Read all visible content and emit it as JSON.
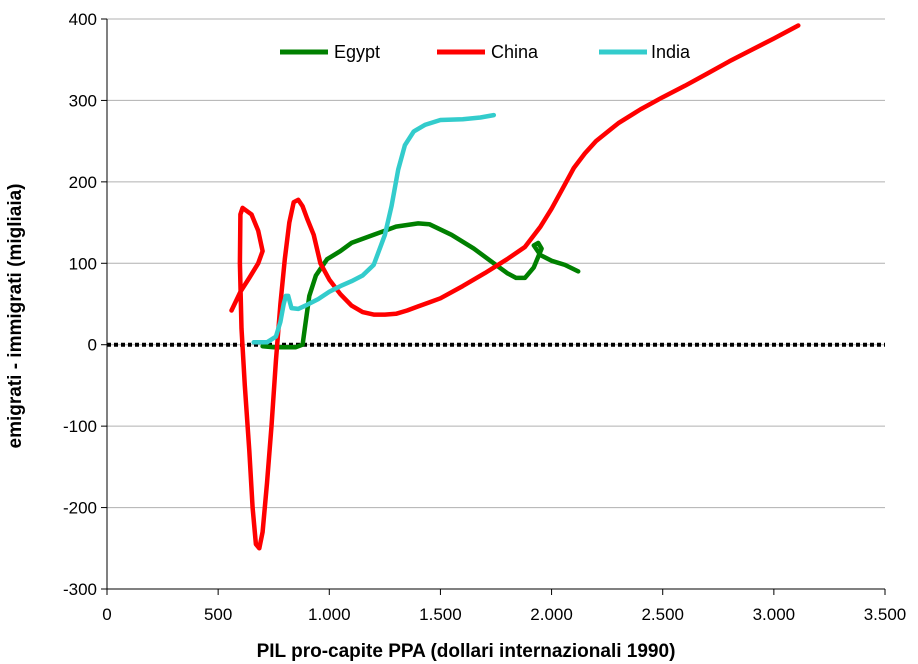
{
  "chart_data": {
    "type": "line",
    "title": "",
    "xlabel": "PIL pro-capite PPA (dollari internazionali 1990)",
    "ylabel": "emigrati - immigrati (migliaia)",
    "xlim": [
      0,
      3500
    ],
    "ylim": [
      -300,
      400
    ],
    "xticks": [
      0,
      500,
      1000,
      1500,
      2000,
      2500,
      3000,
      3500
    ],
    "xtick_labels": [
      "0",
      "500",
      "1.000",
      "1.500",
      "2.000",
      "2.500",
      "3.000",
      "3.500"
    ],
    "yticks": [
      -300,
      -200,
      -100,
      0,
      100,
      200,
      300,
      400
    ],
    "ytick_labels": [
      "-300",
      "-200",
      "-100",
      "0",
      "100",
      "200",
      "300",
      "400"
    ],
    "grid": "horizontal",
    "legend_position": "top",
    "reference_line": {
      "y": 0,
      "style": "dotted",
      "color": "#000000"
    },
    "series": [
      {
        "name": "Egypt",
        "color": "#008000",
        "points": [
          [
            700,
            -2
          ],
          [
            750,
            -3
          ],
          [
            800,
            -3
          ],
          [
            850,
            -3
          ],
          [
            880,
            0
          ],
          [
            890,
            20
          ],
          [
            910,
            60
          ],
          [
            940,
            85
          ],
          [
            990,
            105
          ],
          [
            1050,
            115
          ],
          [
            1100,
            125
          ],
          [
            1200,
            135
          ],
          [
            1300,
            145
          ],
          [
            1400,
            149
          ],
          [
            1450,
            148
          ],
          [
            1550,
            135
          ],
          [
            1650,
            118
          ],
          [
            1750,
            98
          ],
          [
            1800,
            88
          ],
          [
            1840,
            82
          ],
          [
            1880,
            82
          ],
          [
            1920,
            95
          ],
          [
            1955,
            118
          ],
          [
            1940,
            125
          ],
          [
            1920,
            122
          ],
          [
            1950,
            110
          ],
          [
            2000,
            103
          ],
          [
            2060,
            98
          ],
          [
            2120,
            90
          ]
        ]
      },
      {
        "name": "China",
        "color": "#ff0000",
        "points": [
          [
            560,
            42
          ],
          [
            600,
            65
          ],
          [
            640,
            82
          ],
          [
            680,
            100
          ],
          [
            700,
            115
          ],
          [
            680,
            140
          ],
          [
            650,
            160
          ],
          [
            610,
            168
          ],
          [
            600,
            160
          ],
          [
            598,
            100
          ],
          [
            605,
            20
          ],
          [
            620,
            -50
          ],
          [
            640,
            -130
          ],
          [
            655,
            -200
          ],
          [
            670,
            -245
          ],
          [
            685,
            -250
          ],
          [
            700,
            -230
          ],
          [
            720,
            -170
          ],
          [
            740,
            -100
          ],
          [
            760,
            -20
          ],
          [
            780,
            50
          ],
          [
            800,
            105
          ],
          [
            820,
            150
          ],
          [
            840,
            175
          ],
          [
            860,
            178
          ],
          [
            880,
            170
          ],
          [
            900,
            155
          ],
          [
            930,
            135
          ],
          [
            960,
            100
          ],
          [
            1000,
            80
          ],
          [
            1050,
            62
          ],
          [
            1100,
            48
          ],
          [
            1150,
            40
          ],
          [
            1200,
            37
          ],
          [
            1250,
            37
          ],
          [
            1300,
            38
          ],
          [
            1350,
            42
          ],
          [
            1400,
            47
          ],
          [
            1450,
            52
          ],
          [
            1500,
            57
          ],
          [
            1600,
            72
          ],
          [
            1700,
            88
          ],
          [
            1800,
            105
          ],
          [
            1880,
            120
          ],
          [
            1950,
            145
          ],
          [
            2000,
            167
          ],
          [
            2050,
            192
          ],
          [
            2100,
            217
          ],
          [
            2150,
            235
          ],
          [
            2200,
            250
          ],
          [
            2300,
            272
          ],
          [
            2400,
            289
          ],
          [
            2500,
            304
          ],
          [
            2600,
            318
          ],
          [
            2700,
            333
          ],
          [
            2800,
            348
          ],
          [
            2900,
            362
          ],
          [
            3000,
            376
          ],
          [
            3110,
            392
          ]
        ]
      },
      {
        "name": "India",
        "color": "#33cccc",
        "points": [
          [
            660,
            3
          ],
          [
            690,
            3
          ],
          [
            720,
            3
          ],
          [
            760,
            10
          ],
          [
            780,
            28
          ],
          [
            795,
            50
          ],
          [
            805,
            60
          ],
          [
            815,
            60
          ],
          [
            830,
            45
          ],
          [
            860,
            44
          ],
          [
            900,
            49
          ],
          [
            950,
            56
          ],
          [
            1000,
            65
          ],
          [
            1050,
            72
          ],
          [
            1100,
            78
          ],
          [
            1150,
            85
          ],
          [
            1200,
            98
          ],
          [
            1250,
            135
          ],
          [
            1280,
            170
          ],
          [
            1310,
            215
          ],
          [
            1340,
            245
          ],
          [
            1380,
            262
          ],
          [
            1430,
            270
          ],
          [
            1500,
            276
          ],
          [
            1600,
            277
          ],
          [
            1680,
            279
          ],
          [
            1740,
            282
          ]
        ]
      }
    ]
  }
}
